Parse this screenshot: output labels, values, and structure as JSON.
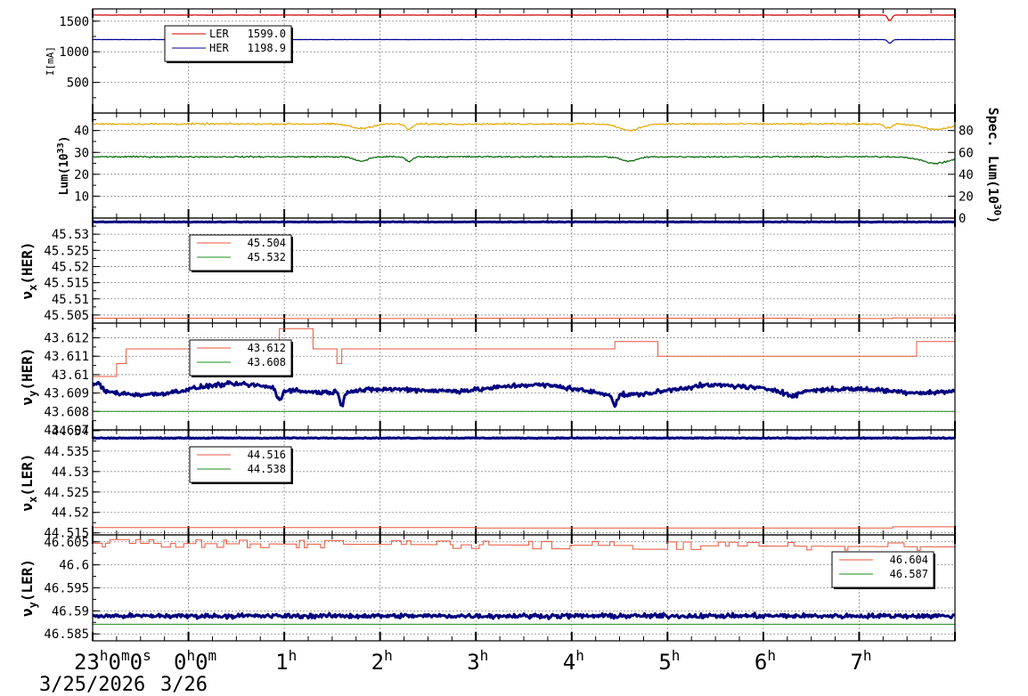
{
  "chart_data": {
    "type": "line",
    "time_axis": {
      "labels": [
        {
          "main": "23",
          "sup": "h",
          "main2": "0",
          "sup2": "m",
          "main3": "0",
          "sup3": "s",
          "hour": -1
        },
        {
          "main": "0",
          "sup": "h",
          "main2": "0",
          "sup2": "m",
          "hour": 0
        },
        {
          "main": "1",
          "sup": "h",
          "hour": 1
        },
        {
          "main": "2",
          "sup": "h",
          "hour": 2
        },
        {
          "main": "3",
          "sup": "h",
          "hour": 3
        },
        {
          "main": "4",
          "sup": "h",
          "hour": 4
        },
        {
          "main": "5",
          "sup": "h",
          "hour": 5
        },
        {
          "main": "6",
          "sup": "h",
          "hour": 6
        },
        {
          "main": "7",
          "sup": "h",
          "hour": 7
        }
      ],
      "date_start": "3/25/2026",
      "date_next": "3/26",
      "range_hours_from_midnight": [
        -1,
        8
      ]
    },
    "panels": [
      {
        "id": "current",
        "ylabel": "I[mA]",
        "ylim": [
          0,
          1700
        ],
        "yticks": [
          500,
          1000,
          1500
        ],
        "legend": {
          "position": "top-left",
          "entries": [
            {
              "name": "LER",
              "value": "1599.0",
              "color": "#cc0000"
            },
            {
              "name": "HER",
              "value": "1198.9",
              "color": "#000099"
            }
          ]
        },
        "series": [
          {
            "name": "LER",
            "color": "#cc0000",
            "base": 1599,
            "noise": 3,
            "dips": [
              {
                "t": 7.32,
                "depth": 90,
                "w": 0.03
              }
            ]
          },
          {
            "name": "HER",
            "color": "#000099",
            "base": 1199,
            "noise": 2,
            "dips": [
              {
                "t": 7.32,
                "depth": 60,
                "w": 0.03
              }
            ]
          }
        ]
      },
      {
        "id": "lum",
        "ylabel": "Lum(10",
        "ylabel_sup": "33",
        "ylabel_end": ")",
        "ylim": [
          0,
          48
        ],
        "yticks": [
          10,
          20,
          30,
          40
        ],
        "y2label": "Spec. Lum(10",
        "y2label_sup": "30",
        "y2label_end": ")",
        "y2lim": [
          0,
          96
        ],
        "y2ticks": [
          0,
          20,
          40,
          60,
          80
        ],
        "series": [
          {
            "name": "Spec. Lum",
            "axis": "right",
            "color": "#e6a800",
            "base": 86,
            "noise": 1.2,
            "dips": [
              {
                "t": 1.8,
                "depth": 4,
                "w": 0.15
              },
              {
                "t": 2.3,
                "depth": 5,
                "w": 0.05
              },
              {
                "t": 4.6,
                "depth": 6,
                "w": 0.15
              },
              {
                "t": 7.3,
                "depth": 4,
                "w": 0.05
              },
              {
                "t": 7.8,
                "depth": 5,
                "w": 0.2
              }
            ]
          },
          {
            "name": "Lum",
            "axis": "left",
            "color": "#006600",
            "base": 28,
            "noise": 0.5,
            "dips": [
              {
                "t": 1.8,
                "depth": 2,
                "w": 0.1
              },
              {
                "t": 2.3,
                "depth": 2,
                "w": 0.05
              },
              {
                "t": 4.6,
                "depth": 2,
                "w": 0.12
              },
              {
                "t": 7.8,
                "depth": 3,
                "w": 0.2
              }
            ]
          }
        ]
      },
      {
        "id": "nux_her",
        "ylabel": "ν",
        "ylabel_sub": "x",
        "ylabel_end": "(HER)",
        "ylim": [
          45.5025,
          45.535
        ],
        "yticks": [
          45.505,
          45.51,
          45.515,
          45.52,
          45.525,
          45.53
        ],
        "ytick_labels": [
          "45.505",
          "45.51",
          "45.515",
          "45.52",
          "45.525",
          "45.53"
        ],
        "legend": {
          "position": "top-left",
          "entries": [
            {
              "name": "",
              "value": "45.504",
              "color": "#e8563a"
            },
            {
              "name": "",
              "value": "45.532",
              "color": "#1a8c1a"
            }
          ]
        },
        "series": [
          {
            "name": "set x HER",
            "color": "#e8563a",
            "step": [
              [
                -1,
                45.504
              ],
              [
                1.0,
                45.5039
              ],
              [
                3.0,
                45.504
              ],
              [
                6.4,
                45.5039
              ],
              [
                7.35,
                45.5041
              ],
              [
                8,
                45.5041
              ]
            ]
          },
          {
            "name": "meas x HER",
            "color": "#000080",
            "thick": true,
            "base": 45.5338,
            "noise": 0.00015
          }
        ]
      },
      {
        "id": "nuy_her",
        "ylabel": "ν",
        "ylabel_sub": "y",
        "ylabel_end": "(HER)",
        "ylim": [
          43.607,
          43.6128
        ],
        "yticks": [
          43.607,
          43.608,
          43.609,
          43.61,
          43.611,
          43.612
        ],
        "ytick_labels": [
          "43.607",
          "43.608",
          "43.609",
          "43.61",
          "43.611",
          "43.612"
        ],
        "legend": {
          "position": "top-left",
          "entries": [
            {
              "name": "",
              "value": "43.612",
              "color": "#e8563a"
            },
            {
              "name": "",
              "value": "43.608",
              "color": "#1a8c1a"
            }
          ]
        },
        "series": [
          {
            "name": "set y HER",
            "color": "#e8563a",
            "step": [
              [
                -1,
                43.6099
              ],
              [
                -0.75,
                43.6106
              ],
              [
                -0.65,
                43.6114
              ],
              [
                0.95,
                43.6125
              ],
              [
                1.3,
                43.6114
              ],
              [
                1.55,
                43.6106
              ],
              [
                1.6,
                43.6114
              ],
              [
                4.45,
                43.6118
              ],
              [
                4.9,
                43.611
              ],
              [
                7.6,
                43.6118
              ],
              [
                8,
                43.6118
              ]
            ]
          },
          {
            "name": "ref y HER",
            "color": "#1a8c1a",
            "step": [
              [
                -1,
                43.608
              ],
              [
                8,
                43.608
              ]
            ]
          },
          {
            "name": "meas y HER",
            "color": "#000080",
            "thick": true,
            "base": 43.6092,
            "noise": 0.00018,
            "wave": 0.0003,
            "dips": [
              {
                "t": -0.95,
                "depth": -0.0004,
                "w": 0.05
              },
              {
                "t": 0.95,
                "depth": 0.0006,
                "w": 0.04
              },
              {
                "t": 1.6,
                "depth": 0.0007,
                "w": 0.03
              },
              {
                "t": 4.45,
                "depth": 0.0006,
                "w": 0.03
              },
              {
                "t": 6.3,
                "depth": 0.0003,
                "w": 0.1
              }
            ]
          }
        ]
      },
      {
        "id": "nux_ler",
        "ylabel": "ν",
        "ylabel_sub": "x",
        "ylabel_end": "(LER)",
        "ylim": [
          44.5145,
          44.5402
        ],
        "yticks": [
          44.515,
          44.52,
          44.525,
          44.53,
          44.535,
          44.54
        ],
        "ytick_labels": [
          "44.515",
          "44.52",
          "44.525",
          "44.53",
          "44.535",
          "44.54"
        ],
        "legend": {
          "position": "top-left",
          "entries": [
            {
              "name": "",
              "value": "44.516",
              "color": "#e8563a"
            },
            {
              "name": "",
              "value": "44.538",
              "color": "#1a8c1a"
            }
          ]
        },
        "series": [
          {
            "name": "set x LER",
            "color": "#e8563a",
            "step": [
              [
                -1,
                44.5163
              ],
              [
                3.0,
                44.5162
              ],
              [
                7.35,
                44.5165
              ],
              [
                8,
                44.5165
              ]
            ]
          },
          {
            "name": "meas x LER",
            "color": "#000080",
            "thick": true,
            "base": 44.5382,
            "noise": 0.00015
          }
        ]
      },
      {
        "id": "nuy_ler",
        "ylabel": "ν",
        "ylabel_sub": "y",
        "ylabel_end": "(LER)",
        "ylim": [
          46.5835,
          46.6065
        ],
        "yticks": [
          46.585,
          46.59,
          46.595,
          46.6,
          46.605
        ],
        "ytick_labels": [
          "46.585",
          "46.59",
          "46.595",
          "46.6",
          "46.605"
        ],
        "legend": {
          "position": "top-right",
          "entries": [
            {
              "name": "",
              "value": "46.604",
              "color": "#e8563a"
            },
            {
              "name": "",
              "value": "46.587",
              "color": "#1a8c1a"
            }
          ]
        },
        "series": [
          {
            "name": "set y LER",
            "color": "#e8563a",
            "jitter_step": true,
            "base": 46.6047,
            "drift": -0.0008
          },
          {
            "name": "ref y LER",
            "color": "#1a8c1a",
            "step": [
              [
                -1,
                46.5871
              ],
              [
                8,
                46.5871
              ]
            ]
          },
          {
            "name": "meas y LER",
            "color": "#000080",
            "thick": true,
            "base": 46.5889,
            "noise": 0.0007
          }
        ]
      }
    ]
  }
}
